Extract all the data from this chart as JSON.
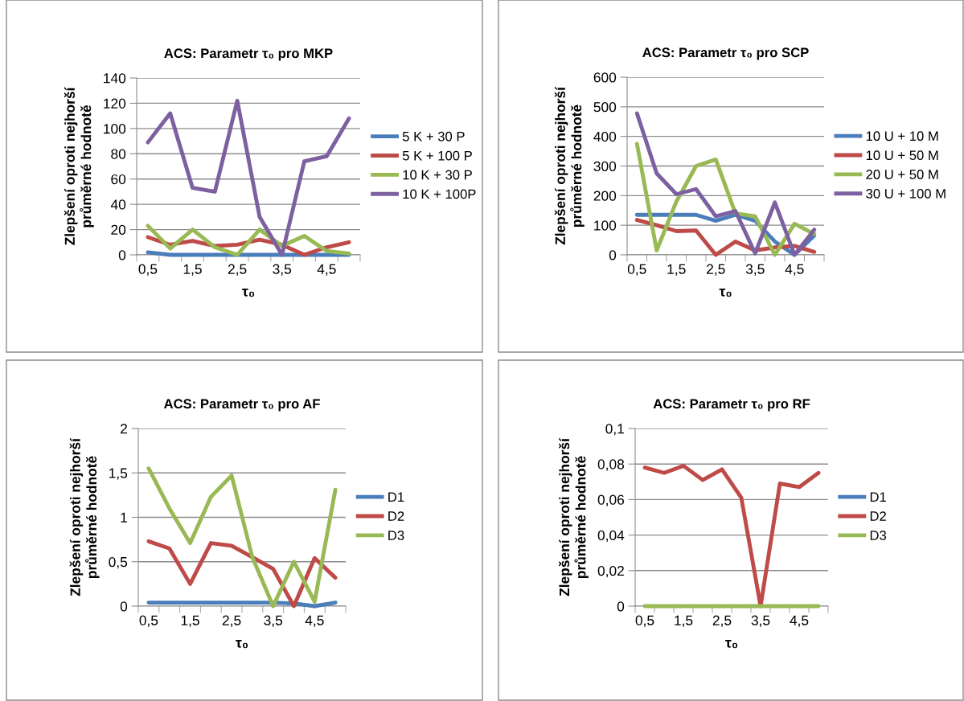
{
  "chart_data": [
    {
      "type": "line",
      "title": "ACS: Parametr τ₀ pro MKP",
      "xlabel": "τ₀",
      "ylabel": "Zlepšení oproti nejhorší průměrné hodnotě",
      "categories": [
        "0,5",
        null,
        "1,5",
        null,
        "2,5",
        null,
        "3,5",
        null,
        "4,5",
        null
      ],
      "ylim": [
        0,
        140
      ],
      "yticks": [
        0,
        20,
        40,
        60,
        80,
        100,
        120,
        140
      ],
      "grid": "y",
      "legend": "right",
      "marker": "none",
      "line_style": "solid",
      "series": [
        {
          "name": "5 K + 30 P",
          "color": "#4a7ebb",
          "values": [
            2,
            0,
            0,
            0,
            0,
            0,
            0,
            0,
            0,
            0
          ]
        },
        {
          "name": "5 K + 100 P",
          "color": "#be4b48",
          "values": [
            14,
            8,
            11,
            7,
            8,
            12,
            8,
            0,
            6,
            10
          ]
        },
        {
          "name": "10 K + 30 P",
          "color": "#98b954",
          "values": [
            23,
            5,
            20,
            6,
            0,
            20,
            7,
            15,
            3,
            1
          ]
        },
        {
          "name": "10 K + 100P",
          "color": "#7d60a0",
          "values": [
            89,
            112,
            53,
            50,
            122,
            30,
            0,
            74,
            78,
            108
          ]
        }
      ]
    },
    {
      "type": "line",
      "title": "ACS: Parametr τ₀ pro SCP",
      "xlabel": "τ₀",
      "ylabel": "Zlepšení oproti nejhorší průměrné hodnotě",
      "categories": [
        "0,5",
        null,
        "1,5",
        null,
        "2,5",
        null,
        "3,5",
        null,
        "4,5",
        null
      ],
      "ylim": [
        0,
        600
      ],
      "yticks": [
        0,
        100,
        200,
        300,
        400,
        500,
        600
      ],
      "grid": "y",
      "legend": "right",
      "marker": "none",
      "line_style": "solid",
      "series": [
        {
          "name": "10 U + 10 M",
          "color": "#4a7ebb",
          "values": [
            135,
            135,
            135,
            135,
            115,
            135,
            115,
            45,
            0,
            65
          ]
        },
        {
          "name": "10 U + 50 M",
          "color": "#be4b48",
          "values": [
            118,
            100,
            80,
            82,
            0,
            45,
            15,
            25,
            30,
            10
          ]
        },
        {
          "name": "20 U + 50 M",
          "color": "#98b954",
          "values": [
            375,
            15,
            180,
            300,
            322,
            140,
            130,
            0,
            105,
            70
          ]
        },
        {
          "name": "30 U + 100 M",
          "color": "#7d60a0",
          "values": [
            478,
            275,
            205,
            222,
            130,
            148,
            5,
            177,
            0,
            85
          ]
        }
      ]
    },
    {
      "type": "line",
      "title": "ACS: Parametr τ₀ pro AF",
      "xlabel": "τ₀",
      "ylabel": "Zlepšení oproti nejhorší průměrné hodnotě",
      "categories": [
        "0,5",
        null,
        "1,5",
        null,
        "2,5",
        null,
        "3,5",
        null,
        "4,5",
        null
      ],
      "ylim": [
        0,
        2
      ],
      "yticks": [
        0,
        {
          "value": 0.5,
          "label": "0,5"
        },
        1,
        {
          "value": 1.5,
          "label": "1,5"
        },
        2
      ],
      "grid": "y",
      "legend": "right",
      "marker": "none",
      "line_style": "solid",
      "series": [
        {
          "name": "D1",
          "color": "#4a7ebb",
          "values": [
            0.04,
            0.04,
            0.04,
            0.04,
            0.04,
            0.04,
            0.04,
            0.03,
            0,
            0.04
          ]
        },
        {
          "name": "D2",
          "color": "#be4b48",
          "values": [
            0.73,
            0.65,
            0.25,
            0.71,
            0.68,
            0.55,
            0.42,
            0,
            0.54,
            0.32
          ]
        },
        {
          "name": "D3",
          "color": "#98b954",
          "values": [
            1.55,
            1.1,
            0.71,
            1.23,
            1.47,
            0.55,
            0,
            0.5,
            0.05,
            1.31
          ]
        }
      ]
    },
    {
      "type": "line",
      "title": "ACS: Parametr τ₀ pro RF",
      "xlabel": "τ₀",
      "ylabel": "Zlepšení oproti nejhorší průměrné hodnotě",
      "categories": [
        "0,5",
        null,
        "1,5",
        null,
        "2,5",
        null,
        "3,5",
        null,
        "4,5",
        null
      ],
      "ylim": [
        0,
        0.1
      ],
      "yticks": [
        0,
        {
          "value": 0.02,
          "label": "0,02"
        },
        {
          "value": 0.04,
          "label": "0,04"
        },
        {
          "value": 0.06,
          "label": "0,06"
        },
        {
          "value": 0.08,
          "label": "0,08"
        },
        {
          "value": 0.1,
          "label": "0,1"
        }
      ],
      "grid": "y",
      "legend": "right",
      "marker": "none",
      "line_style": "solid",
      "series": [
        {
          "name": "D1",
          "color": "#4a7ebb",
          "values": [
            null,
            null,
            null,
            null,
            null,
            null,
            null,
            null,
            null,
            null
          ]
        },
        {
          "name": "D2",
          "color": "#be4b48",
          "values": [
            0.078,
            0.075,
            0.079,
            0.071,
            0.077,
            0.061,
            0,
            0.069,
            0.067,
            0.075
          ]
        },
        {
          "name": "D3",
          "color": "#98b954",
          "values": [
            0,
            0,
            0,
            0,
            0,
            0,
            0,
            0,
            0,
            0
          ]
        }
      ]
    }
  ]
}
